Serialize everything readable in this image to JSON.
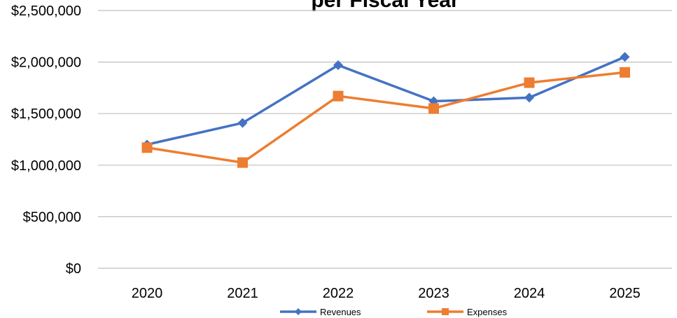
{
  "chart_data": {
    "type": "line",
    "title": "per Fiscal Year",
    "xlabel": "",
    "ylabel": "",
    "categories": [
      "2020",
      "2021",
      "2022",
      "2023",
      "2024",
      "2025"
    ],
    "y_ticks": [
      "$0",
      "$500,000",
      "$1,000,000",
      "$1,500,000",
      "$2,000,000",
      "$2,500,000"
    ],
    "y_tick_values": [
      0,
      500000,
      1000000,
      1500000,
      2000000,
      2500000
    ],
    "ylim": [
      0,
      2500000
    ],
    "grid": true,
    "legend_position": "bottom",
    "series": [
      {
        "name": "Revenues",
        "values": [
          1200000,
          1410000,
          1970000,
          1620000,
          1655000,
          2050000
        ],
        "color": "#4472C4",
        "marker": "diamond"
      },
      {
        "name": "Expenses",
        "values": [
          1170000,
          1025000,
          1670000,
          1550000,
          1800000,
          1900000
        ],
        "color": "#ED7D31",
        "marker": "square"
      }
    ]
  }
}
